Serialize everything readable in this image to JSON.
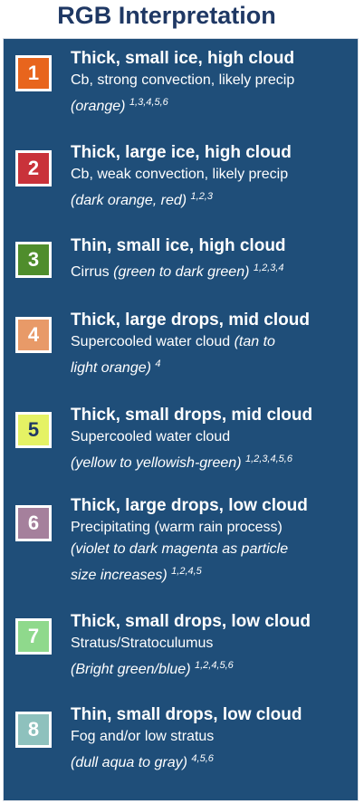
{
  "title": "RGB Interpretation",
  "items": [
    {
      "num": "1",
      "color": "#e8651d",
      "num_color": "#ffffff",
      "heading": "Thick, small ice, high cloud",
      "desc": "Cb, strong convection, likely precip",
      "colors": "(orange)",
      "refs": "1,3,4,5,6"
    },
    {
      "num": "2",
      "color": "#c9323a",
      "num_color": "#ffffff",
      "heading": "Thick, large ice, high cloud",
      "desc": "Cb, weak convection, likely precip",
      "colors": "(dark orange, red)",
      "refs": "1,2,3"
    },
    {
      "num": "3",
      "color": "#4f8d2c",
      "num_color": "#ffffff",
      "heading": "Thin, small ice, high cloud",
      "desc": "Cirrus",
      "colors": "(green to dark green)",
      "refs": "1,2,3,4"
    },
    {
      "num": "4",
      "color": "#e89a68",
      "num_color": "#ffffff",
      "heading": "Thick, large drops, mid cloud",
      "desc": "Supercooled water cloud",
      "colors_a": "(tan to",
      "colors_b": "light orange)",
      "refs": "4"
    },
    {
      "num": "5",
      "color": "#e5f264",
      "num_color": "#1f3864",
      "heading": "Thick, small drops, mid cloud",
      "desc": "Supercooled water cloud",
      "colors": "(yellow to yellowish-green)",
      "refs": "1,2,3,4,5,6"
    },
    {
      "num": "6",
      "color": "#a5809c",
      "num_color": "#ffffff",
      "heading": "Thick, large drops, low cloud",
      "desc": "Precipitating (warm rain process)",
      "colors_a": "(violet to dark magenta as particle",
      "colors_b": "size increases)",
      "refs": "1,2,4,5"
    },
    {
      "num": "7",
      "color": "#8fd98c",
      "num_color": "#ffffff",
      "heading": "Thick, small drops, low cloud",
      "desc": "Stratus/Stratoculumus",
      "colors": "(Bright green/blue)",
      "refs": "1,2,4,5,6"
    },
    {
      "num": "8",
      "color": "#8ec1bd",
      "num_color": "#ffffff",
      "heading": "Thin, small drops, low cloud",
      "desc": "Fog and/or low stratus",
      "colors": "(dull aqua to gray)",
      "refs": "4,5,6"
    }
  ]
}
